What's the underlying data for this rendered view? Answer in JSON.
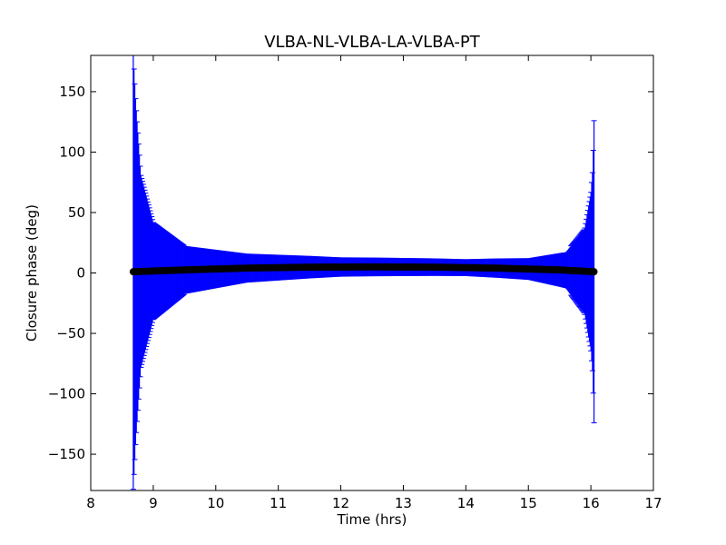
{
  "chart_data": {
    "type": "scatter",
    "title": "VLBA-NL-VLBA-LA-VLBA-PT",
    "xlabel": "Time (hrs)",
    "ylabel": "Closure phase (deg)",
    "xlim": [
      8,
      17
    ],
    "ylim": [
      -180,
      180
    ],
    "xticks": [
      8,
      9,
      10,
      11,
      12,
      13,
      14,
      15,
      16,
      17
    ],
    "yticks": [
      -150,
      -100,
      -50,
      0,
      50,
      100,
      150
    ],
    "xtick_labels": [
      "8",
      "9",
      "10",
      "11",
      "12",
      "13",
      "14",
      "15",
      "16",
      "17"
    ],
    "ytick_labels": [
      "−150",
      "−100",
      "−50",
      "0",
      "50",
      "100",
      "150"
    ],
    "grid": false,
    "series": [
      {
        "style": "points with vertical error bars",
        "marker_color": "#000000",
        "errorbar_color": "#0000ff",
        "x_range": [
          8.68,
          16.05
        ],
        "phase_profile": [
          {
            "t": 8.68,
            "phase": 1.0
          },
          {
            "t": 9.5,
            "phase": 2.5
          },
          {
            "t": 10.5,
            "phase": 4.0
          },
          {
            "t": 11.5,
            "phase": 4.8
          },
          {
            "t": 12.5,
            "phase": 5.0
          },
          {
            "t": 13.5,
            "phase": 4.8
          },
          {
            "t": 14.5,
            "phase": 4.0
          },
          {
            "t": 15.5,
            "phase": 2.5
          },
          {
            "t": 16.05,
            "phase": 1.0
          }
        ],
        "error_samples": [
          {
            "t": 8.68,
            "err": 180
          },
          {
            "t": 8.72,
            "err": 140
          },
          {
            "t": 8.8,
            "err": 80
          },
          {
            "t": 9.0,
            "err": 40
          },
          {
            "t": 9.5,
            "err": 20
          },
          {
            "t": 10.5,
            "err": 12
          },
          {
            "t": 12.0,
            "err": 8
          },
          {
            "t": 14.0,
            "err": 7
          },
          {
            "t": 15.0,
            "err": 9
          },
          {
            "t": 15.6,
            "err": 15
          },
          {
            "t": 15.9,
            "err": 35
          },
          {
            "t": 16.0,
            "err": 65
          },
          {
            "t": 16.03,
            "err": 85
          },
          {
            "t": 16.05,
            "err": 125
          }
        ]
      }
    ]
  }
}
